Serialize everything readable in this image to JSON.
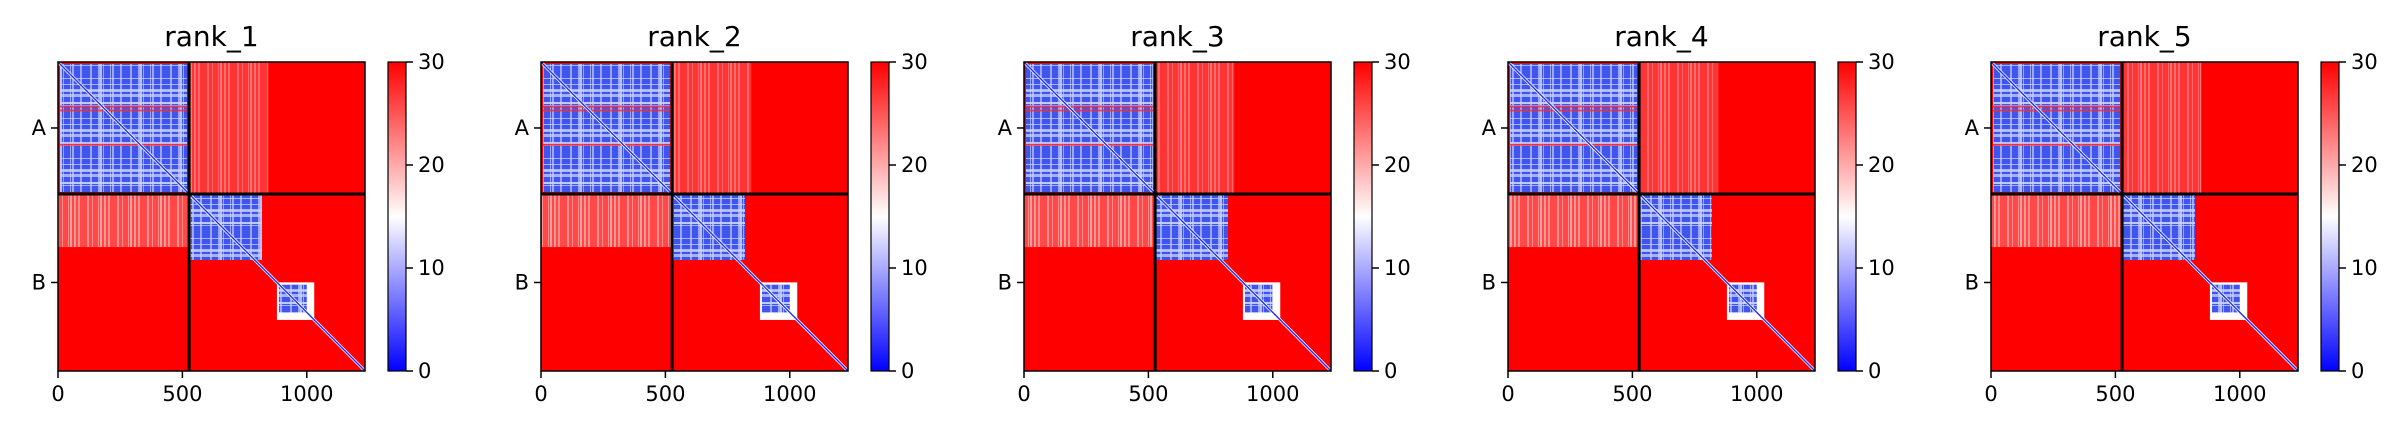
{
  "chart_data": [
    {
      "type": "heatmap",
      "title": "rank_1",
      "x_ticks": [
        0,
        500,
        1000
      ],
      "chain_labels": [
        "A",
        "B"
      ],
      "xlim": [
        0,
        1234
      ],
      "chain_boundary": 527,
      "colorbar_ticks": [
        0,
        10,
        20,
        30
      ],
      "colorbar_range": [
        0,
        30
      ],
      "colormap": [
        "#0000ff",
        "#ffffff",
        "#ff0000"
      ]
    },
    {
      "type": "heatmap",
      "title": "rank_2",
      "x_ticks": [
        0,
        500,
        1000
      ],
      "chain_labels": [
        "A",
        "B"
      ],
      "xlim": [
        0,
        1234
      ],
      "chain_boundary": 527,
      "colorbar_ticks": [
        0,
        10,
        20,
        30
      ],
      "colorbar_range": [
        0,
        30
      ],
      "colormap": [
        "#0000ff",
        "#ffffff",
        "#ff0000"
      ]
    },
    {
      "type": "heatmap",
      "title": "rank_3",
      "x_ticks": [
        0,
        500,
        1000
      ],
      "chain_labels": [
        "A",
        "B"
      ],
      "xlim": [
        0,
        1234
      ],
      "chain_boundary": 527,
      "colorbar_ticks": [
        0,
        10,
        20,
        30
      ],
      "colorbar_range": [
        0,
        30
      ],
      "colormap": [
        "#0000ff",
        "#ffffff",
        "#ff0000"
      ]
    },
    {
      "type": "heatmap",
      "title": "rank_4",
      "x_ticks": [
        0,
        500,
        1000
      ],
      "chain_labels": [
        "A",
        "B"
      ],
      "xlim": [
        0,
        1234
      ],
      "chain_boundary": 527,
      "colorbar_ticks": [
        0,
        10,
        20,
        30
      ],
      "colorbar_range": [
        0,
        30
      ],
      "colormap": [
        "#0000ff",
        "#ffffff",
        "#ff0000"
      ]
    },
    {
      "type": "heatmap",
      "title": "rank_5",
      "x_ticks": [
        0,
        500,
        1000
      ],
      "chain_labels": [
        "A",
        "B"
      ],
      "xlim": [
        0,
        1234
      ],
      "chain_boundary": 527,
      "colorbar_ticks": [
        0,
        10,
        20,
        30
      ],
      "colorbar_range": [
        0,
        30
      ],
      "colormap": [
        "#0000ff",
        "#ffffff",
        "#ff0000"
      ]
    }
  ]
}
